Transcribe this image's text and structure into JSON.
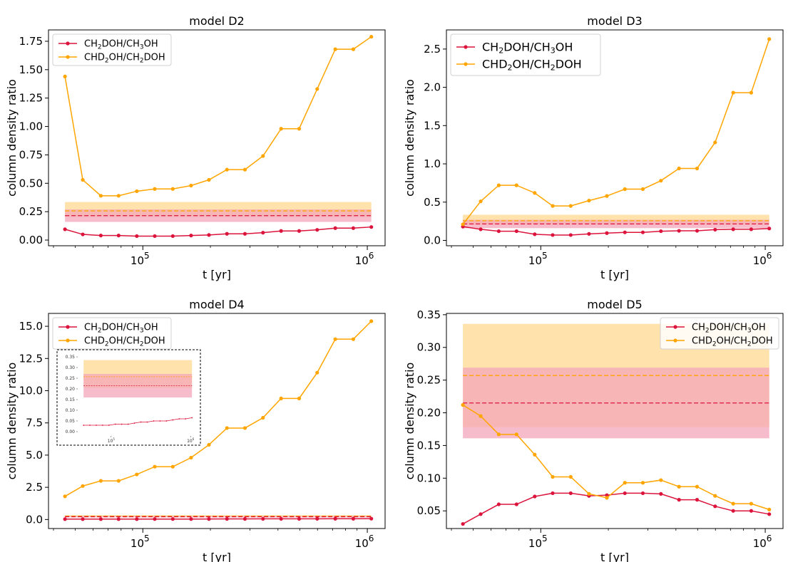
{
  "figure": {
    "colors": {
      "ch2doh_ch3oh": "#dc143c",
      "chd2oh_ch2doh": "#ffa500",
      "band_ch2doh": "#f4a6b9",
      "band_chd2oh": "#ffd890"
    }
  },
  "chart_data": [
    {
      "id": "D2",
      "type": "line",
      "title": "model D2",
      "xlabel": "t [yr]",
      "ylabel": "column density ratio",
      "xscale": "log",
      "xlim": [
        38000,
        1200000
      ],
      "ylim": [
        -0.05,
        1.85
      ],
      "xticks": [
        {
          "value": 100000,
          "base": "10",
          "exp": "5"
        },
        {
          "value": 1000000,
          "base": "10",
          "exp": "6"
        }
      ],
      "yticks": [
        {
          "value": 0.0,
          "label": "0.00"
        },
        {
          "value": 0.25,
          "label": "0.25"
        },
        {
          "value": 0.5,
          "label": "0.50"
        },
        {
          "value": 0.75,
          "label": "0.75"
        },
        {
          "value": 1.0,
          "label": "1.00"
        },
        {
          "value": 1.25,
          "label": "1.25"
        },
        {
          "value": 1.5,
          "label": "1.50"
        },
        {
          "value": 1.75,
          "label": "1.75"
        }
      ],
      "legend": {
        "position": "top-left",
        "size": "small"
      },
      "x": [
        45000,
        54000,
        65000,
        78000,
        94000,
        113000,
        136000,
        164000,
        197000,
        237000,
        285000,
        343000,
        413000,
        497000,
        598000,
        720000,
        866000,
        1042000
      ],
      "series": [
        {
          "name_parts": [
            [
              "CH",
              "t"
            ],
            [
              "2",
              "sub"
            ],
            [
              "DOH/CH",
              "t"
            ],
            [
              "3",
              "sub"
            ],
            [
              "OH",
              "t"
            ]
          ],
          "color_key": "ch2doh_ch3oh",
          "values": [
            0.095,
            0.05,
            0.04,
            0.04,
            0.035,
            0.035,
            0.035,
            0.04,
            0.045,
            0.055,
            0.055,
            0.065,
            0.08,
            0.08,
            0.09,
            0.105,
            0.105,
            0.115
          ]
        },
        {
          "name_parts": [
            [
              "CHD",
              "t"
            ],
            [
              "2",
              "sub"
            ],
            [
              "OH/CH",
              "t"
            ],
            [
              "2",
              "sub"
            ],
            [
              "DOH",
              "t"
            ]
          ],
          "color_key": "chd2oh_ch2doh",
          "values": [
            1.44,
            0.53,
            0.39,
            0.39,
            0.43,
            0.45,
            0.45,
            0.48,
            0.53,
            0.62,
            0.62,
            0.74,
            0.98,
            0.98,
            1.33,
            1.68,
            1.68,
            1.79
          ]
        }
      ],
      "bands": [
        {
          "color_key": "band_chd2oh",
          "low": 0.205,
          "high": 0.335,
          "center": 0.257,
          "dash_color_key": "chd2oh_ch2doh"
        },
        {
          "color_key": "band_ch2doh",
          "low": 0.16,
          "high": 0.27,
          "center": 0.215,
          "dash_color_key": "ch2doh_ch3oh"
        }
      ]
    },
    {
      "id": "D3",
      "type": "line",
      "title": "model D3",
      "xlabel": "t [yr]",
      "ylabel": "column density ratio",
      "xscale": "log",
      "xlim": [
        38000,
        1200000
      ],
      "ylim": [
        -0.07,
        2.75
      ],
      "xticks": [
        {
          "value": 100000,
          "base": "10",
          "exp": "5"
        },
        {
          "value": 1000000,
          "base": "10",
          "exp": "6"
        }
      ],
      "yticks": [
        {
          "value": 0.0,
          "label": "0.0"
        },
        {
          "value": 0.5,
          "label": "0.5"
        },
        {
          "value": 1.0,
          "label": "1.0"
        },
        {
          "value": 1.5,
          "label": "1.5"
        },
        {
          "value": 2.0,
          "label": "2.0"
        },
        {
          "value": 2.5,
          "label": "2.5"
        }
      ],
      "legend": {
        "position": "top-left",
        "size": "large"
      },
      "x": [
        45000,
        54000,
        65000,
        78000,
        94000,
        113000,
        136000,
        164000,
        197000,
        237000,
        285000,
        343000,
        413000,
        497000,
        598000,
        720000,
        866000,
        1042000
      ],
      "series": [
        {
          "name_parts": [
            [
              "CH",
              "t"
            ],
            [
              "2",
              "sub"
            ],
            [
              "DOH/CH",
              "t"
            ],
            [
              "3",
              "sub"
            ],
            [
              "OH",
              "t"
            ]
          ],
          "color_key": "ch2doh_ch3oh",
          "values": [
            0.18,
            0.145,
            0.12,
            0.12,
            0.08,
            0.07,
            0.07,
            0.085,
            0.095,
            0.105,
            0.105,
            0.12,
            0.125,
            0.125,
            0.14,
            0.145,
            0.145,
            0.155
          ]
        },
        {
          "name_parts": [
            [
              "CHD",
              "t"
            ],
            [
              "2",
              "sub"
            ],
            [
              "OH/CH",
              "t"
            ],
            [
              "2",
              "sub"
            ],
            [
              "DOH",
              "t"
            ]
          ],
          "color_key": "chd2oh_ch2doh",
          "values": [
            0.21,
            0.51,
            0.72,
            0.72,
            0.62,
            0.45,
            0.45,
            0.52,
            0.58,
            0.67,
            0.67,
            0.78,
            0.94,
            0.94,
            1.28,
            1.93,
            1.93,
            2.63
          ]
        }
      ],
      "bands": [
        {
          "color_key": "band_chd2oh",
          "low": 0.205,
          "high": 0.335,
          "center": 0.257,
          "dash_color_key": "chd2oh_ch2doh"
        },
        {
          "color_key": "band_ch2doh",
          "low": 0.16,
          "high": 0.27,
          "center": 0.215,
          "dash_color_key": "ch2doh_ch3oh"
        }
      ]
    },
    {
      "id": "D4",
      "type": "line",
      "title": "model D4",
      "xlabel": "t [yr]",
      "ylabel": "column density ratio",
      "xscale": "log",
      "xlim": [
        38000,
        1200000
      ],
      "ylim": [
        -0.7,
        16.0
      ],
      "xticks": [
        {
          "value": 100000,
          "base": "10",
          "exp": "5"
        },
        {
          "value": 1000000,
          "base": "10",
          "exp": "6"
        }
      ],
      "yticks": [
        {
          "value": 0.0,
          "label": "0.0"
        },
        {
          "value": 2.5,
          "label": "2.5"
        },
        {
          "value": 5.0,
          "label": "5.0"
        },
        {
          "value": 7.5,
          "label": "7.5"
        },
        {
          "value": 10.0,
          "label": "10.0"
        },
        {
          "value": 12.5,
          "label": "12.5"
        },
        {
          "value": 15.0,
          "label": "15.0"
        }
      ],
      "legend": {
        "position": "top-left",
        "size": "small"
      },
      "x": [
        45000,
        54000,
        65000,
        78000,
        94000,
        113000,
        136000,
        164000,
        197000,
        237000,
        285000,
        343000,
        413000,
        497000,
        598000,
        720000,
        866000,
        1042000
      ],
      "series": [
        {
          "name_parts": [
            [
              "CH",
              "t"
            ],
            [
              "2",
              "sub"
            ],
            [
              "DOH/CH",
              "t"
            ],
            [
              "3",
              "sub"
            ],
            [
              "OH",
              "t"
            ]
          ],
          "color_key": "ch2doh_ch3oh",
          "values": [
            0.03,
            0.03,
            0.03,
            0.03,
            0.03,
            0.035,
            0.035,
            0.035,
            0.04,
            0.045,
            0.045,
            0.05,
            0.05,
            0.05,
            0.055,
            0.06,
            0.06,
            0.065
          ]
        },
        {
          "name_parts": [
            [
              "CHD",
              "t"
            ],
            [
              "2",
              "sub"
            ],
            [
              "OH/CH",
              "t"
            ],
            [
              "2",
              "sub"
            ],
            [
              "DOH",
              "t"
            ]
          ],
          "color_key": "chd2oh_ch2doh",
          "values": [
            1.8,
            2.6,
            3.0,
            3.0,
            3.5,
            4.1,
            4.1,
            4.8,
            5.8,
            7.1,
            7.1,
            7.9,
            9.4,
            9.4,
            11.4,
            14.0,
            14.0,
            15.4
          ]
        }
      ],
      "bands": [
        {
          "color_key": "band_chd2oh",
          "low": 0.205,
          "high": 0.335,
          "center": 0.257,
          "dash_color_key": "chd2oh_ch2doh"
        },
        {
          "color_key": "band_ch2doh",
          "low": 0.16,
          "high": 0.27,
          "center": 0.215,
          "dash_color_key": "ch2doh_ch3oh"
        }
      ],
      "inset": {
        "ylim": [
          -0.02,
          0.36
        ],
        "yticks": [
          {
            "value": 0.0,
            "label": "0.00"
          },
          {
            "value": 0.05,
            "label": "0.05"
          },
          {
            "value": 0.1,
            "label": "0.10"
          },
          {
            "value": 0.15,
            "label": "0.15"
          },
          {
            "value": 0.2,
            "label": "0.20"
          },
          {
            "value": 0.25,
            "label": "0.25"
          },
          {
            "value": 0.3,
            "label": "0.30"
          },
          {
            "value": 0.35,
            "label": "0.35"
          }
        ],
        "xticks": [
          {
            "value": 100000,
            "base": "10",
            "exp": "5"
          },
          {
            "value": 1000000,
            "base": "10",
            "exp": "6"
          }
        ]
      }
    },
    {
      "id": "D5",
      "type": "line",
      "title": "model D5",
      "xlabel": "t [yr]",
      "ylabel": "column density ratio",
      "xscale": "log",
      "xlim": [
        38000,
        1200000
      ],
      "ylim": [
        0.023,
        0.352
      ],
      "xticks": [
        {
          "value": 100000,
          "base": "10",
          "exp": "5"
        },
        {
          "value": 1000000,
          "base": "10",
          "exp": "6"
        }
      ],
      "yticks": [
        {
          "value": 0.05,
          "label": "0.05"
        },
        {
          "value": 0.1,
          "label": "0.10"
        },
        {
          "value": 0.15,
          "label": "0.15"
        },
        {
          "value": 0.2,
          "label": "0.20"
        },
        {
          "value": 0.25,
          "label": "0.25"
        },
        {
          "value": 0.3,
          "label": "0.30"
        },
        {
          "value": 0.35,
          "label": "0.35"
        }
      ],
      "legend": {
        "position": "top-right",
        "size": "small"
      },
      "x": [
        45000,
        54000,
        65000,
        78000,
        94000,
        113000,
        136000,
        164000,
        197000,
        237000,
        285000,
        343000,
        413000,
        497000,
        598000,
        720000,
        866000,
        1042000
      ],
      "series": [
        {
          "name_parts": [
            [
              "CH",
              "t"
            ],
            [
              "2",
              "sub"
            ],
            [
              "DOH/CH",
              "t"
            ],
            [
              "3",
              "sub"
            ],
            [
              "OH",
              "t"
            ]
          ],
          "color_key": "ch2doh_ch3oh",
          "values": [
            0.03,
            0.045,
            0.06,
            0.06,
            0.072,
            0.077,
            0.077,
            0.073,
            0.074,
            0.077,
            0.077,
            0.076,
            0.067,
            0.067,
            0.057,
            0.05,
            0.05,
            0.045
          ]
        },
        {
          "name_parts": [
            [
              "CHD",
              "t"
            ],
            [
              "2",
              "sub"
            ],
            [
              "OH/CH",
              "t"
            ],
            [
              "2",
              "sub"
            ],
            [
              "DOH",
              "t"
            ]
          ],
          "color_key": "chd2oh_ch2doh",
          "values": [
            0.212,
            0.195,
            0.167,
            0.167,
            0.136,
            0.102,
            0.102,
            0.076,
            0.07,
            0.093,
            0.093,
            0.097,
            0.087,
            0.087,
            0.073,
            0.061,
            0.061,
            0.052
          ]
        }
      ],
      "bands": [
        {
          "color_key": "band_chd2oh",
          "low": 0.178,
          "high": 0.336,
          "center": 0.257,
          "dash_color_key": "chd2oh_ch2doh"
        },
        {
          "color_key": "band_ch2doh",
          "low": 0.161,
          "high": 0.269,
          "center": 0.215,
          "dash_color_key": "ch2doh_ch3oh"
        }
      ]
    }
  ]
}
